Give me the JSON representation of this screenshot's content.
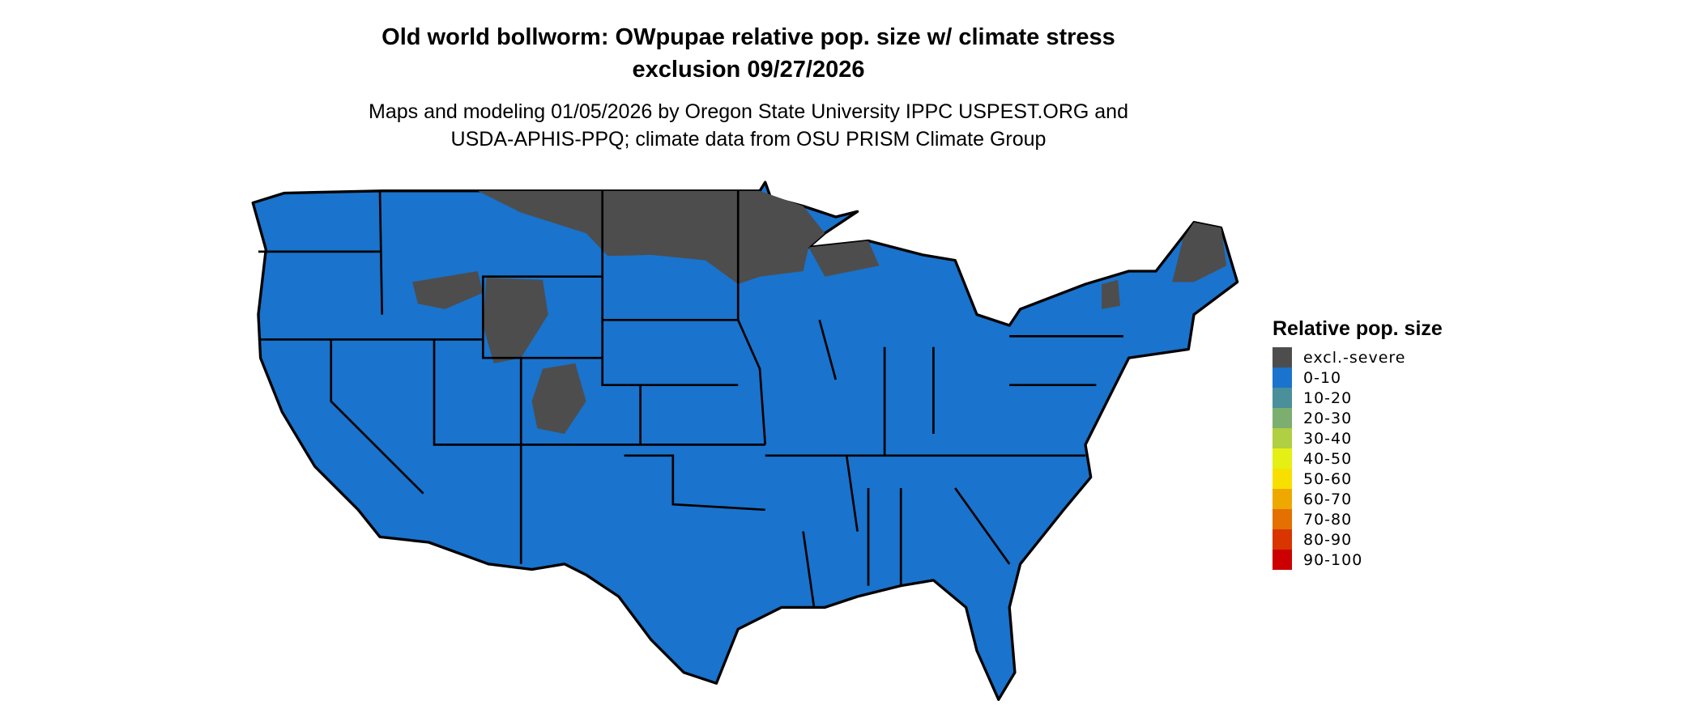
{
  "title_line1": "Old world bollworm: OWpupae relative pop. size w/ climate stress",
  "title_line2": "exclusion 09/27/2026",
  "subtitle_line1": "Maps and modeling 01/05/2026 by Oregon State University IPPC USPEST.ORG and",
  "subtitle_line2": "USDA-APHIS-PPQ; climate data from OSU PRISM Climate Group",
  "map": {
    "region": "Contiguous United States",
    "background_class": "0-10",
    "colors": {
      "land": "#1a73cc",
      "excluded": "#4d4d4d",
      "border": "#000000"
    }
  },
  "legend": {
    "title": "Relative pop. size",
    "items": [
      {
        "label": "excl.-severe",
        "color": "#4d4d4d"
      },
      {
        "label": "0-10",
        "color": "#1a73cc"
      },
      {
        "label": "10-20",
        "color": "#4a8f9a"
      },
      {
        "label": "20-30",
        "color": "#7cae70"
      },
      {
        "label": "30-40",
        "color": "#b0cf42"
      },
      {
        "label": "40-50",
        "color": "#e5ef14"
      },
      {
        "label": "50-60",
        "color": "#f7e000"
      },
      {
        "label": "60-70",
        "color": "#eea800"
      },
      {
        "label": "70-80",
        "color": "#e37000"
      },
      {
        "label": "80-90",
        "color": "#d83500"
      },
      {
        "label": "90-100",
        "color": "#cc0000"
      }
    ]
  }
}
